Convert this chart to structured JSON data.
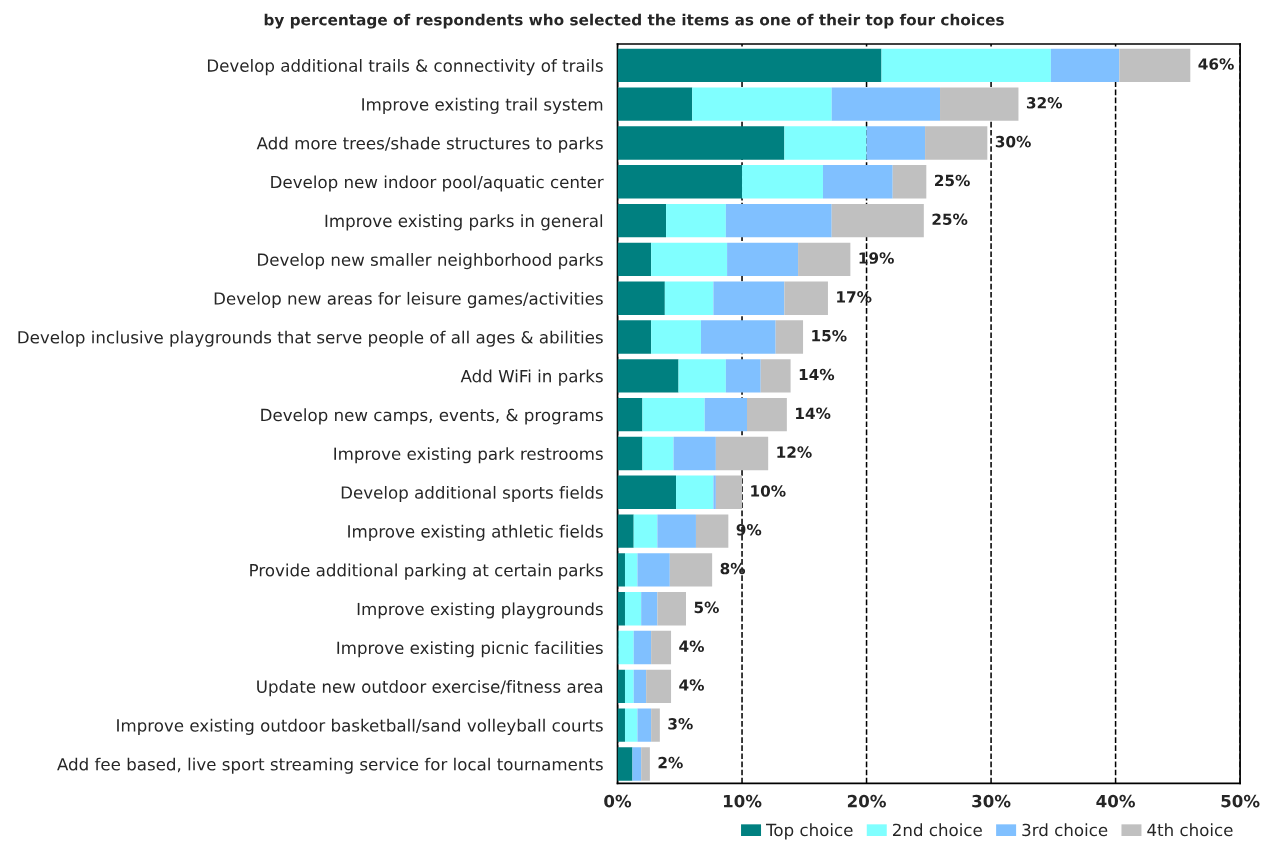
{
  "chart_data": {
    "type": "bar",
    "orientation": "horizontal",
    "stacked": true,
    "title": "by percentage of respondents who selected the items as one of their top four choices",
    "categories": [
      "Develop additional trails & connectivity of trails",
      "Improve existing trail system",
      "Add more trees/shade structures to parks",
      "Develop new indoor pool/aquatic center",
      "Improve existing parks in general",
      "Develop new smaller neighborhood parks",
      "Develop new areas for leisure games/activities",
      "Develop inclusive playgrounds that serve people of all ages & abilities",
      "Add WiFi in parks",
      "Develop new camps, events, & programs",
      "Improve existing park restrooms",
      "Develop additional sports fields",
      "Improve existing athletic fields",
      "Provide additional parking at certain parks",
      "Improve existing playgrounds",
      "Improve existing picnic facilities",
      "Update new outdoor exercise/fitness area",
      "Improve existing outdoor basketball/sand volleyball courts",
      "Add fee based, live sport streaming service for local tournaments"
    ],
    "series": [
      {
        "name": "Top choice",
        "color": "#008080",
        "values": [
          21.2,
          6.0,
          13.4,
          10.0,
          3.9,
          2.7,
          3.8,
          2.7,
          4.9,
          2.0,
          2.0,
          4.7,
          1.3,
          0.6,
          0.6,
          0.1,
          0.6,
          0.6,
          1.2
        ]
      },
      {
        "name": "2nd choice",
        "color": "#80ffff",
        "values": [
          13.6,
          11.2,
          6.6,
          6.5,
          4.8,
          6.1,
          3.9,
          4.0,
          3.8,
          5.0,
          2.5,
          3.0,
          1.9,
          1.0,
          1.3,
          1.2,
          0.7,
          1.0,
          0
        ]
      },
      {
        "name": "3rd choice",
        "color": "#80c0ff",
        "values": [
          5.5,
          8.7,
          4.7,
          5.6,
          8.5,
          5.7,
          5.7,
          6.0,
          2.8,
          3.4,
          3.4,
          0.2,
          3.1,
          2.6,
          1.3,
          1.4,
          1.0,
          1.1,
          0.7
        ]
      },
      {
        "name": "4th choice",
        "color": "#c0c0c0",
        "values": [
          5.7,
          6.3,
          5.0,
          2.7,
          7.4,
          4.2,
          3.5,
          2.2,
          2.4,
          3.2,
          4.2,
          2.1,
          2.6,
          3.4,
          2.3,
          1.6,
          2.0,
          0.7,
          0.7
        ]
      }
    ],
    "totals": [
      "46%",
      "32%",
      "30%",
      "25%",
      "25%",
      "19%",
      "17%",
      "15%",
      "14%",
      "14%",
      "12%",
      "10%",
      "9%",
      "8%",
      "5%",
      "4%",
      "4%",
      "3%",
      "2%"
    ],
    "xlim": [
      0,
      50
    ],
    "xticks": [
      {
        "value": 0,
        "label": "0%"
      },
      {
        "value": 10,
        "label": "10%"
      },
      {
        "value": 20,
        "label": "20%"
      },
      {
        "value": 30,
        "label": "30%"
      },
      {
        "value": 40,
        "label": "40%"
      },
      {
        "value": 50,
        "label": "50%"
      }
    ],
    "grid": "x",
    "line_style": "dashed",
    "legend": "bottom right"
  }
}
